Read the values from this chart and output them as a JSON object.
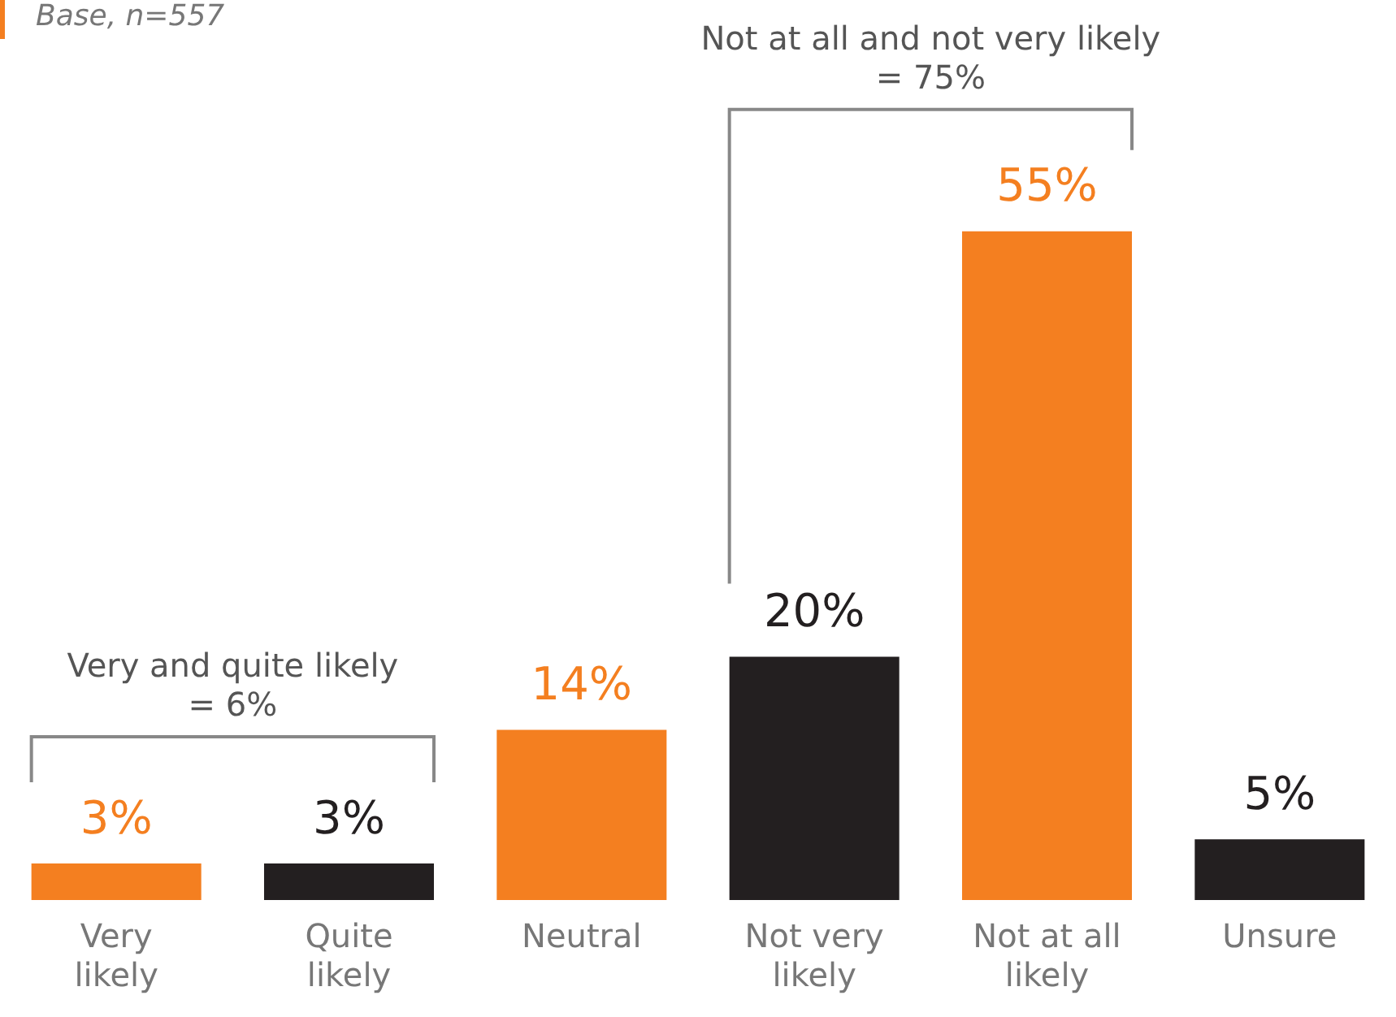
{
  "chart_data": {
    "type": "bar",
    "categories": [
      "Very likely",
      "Quite likely",
      "Neutral",
      "Not very likely",
      "Not at all likely",
      "Unsure"
    ],
    "values": [
      3,
      3,
      14,
      20,
      55,
      5
    ],
    "colors": [
      "#f47f20",
      "#231f20",
      "#f47f20",
      "#231f20",
      "#f47f20",
      "#231f20"
    ],
    "value_labels": [
      "3%",
      "3%",
      "14%",
      "20%",
      "55%",
      "5%"
    ],
    "grid": false,
    "legend": false,
    "annotations": [
      "Base, n=557",
      "Very and quite likely = 6%",
      "Not at all and not very likely = 75%"
    ]
  }
}
